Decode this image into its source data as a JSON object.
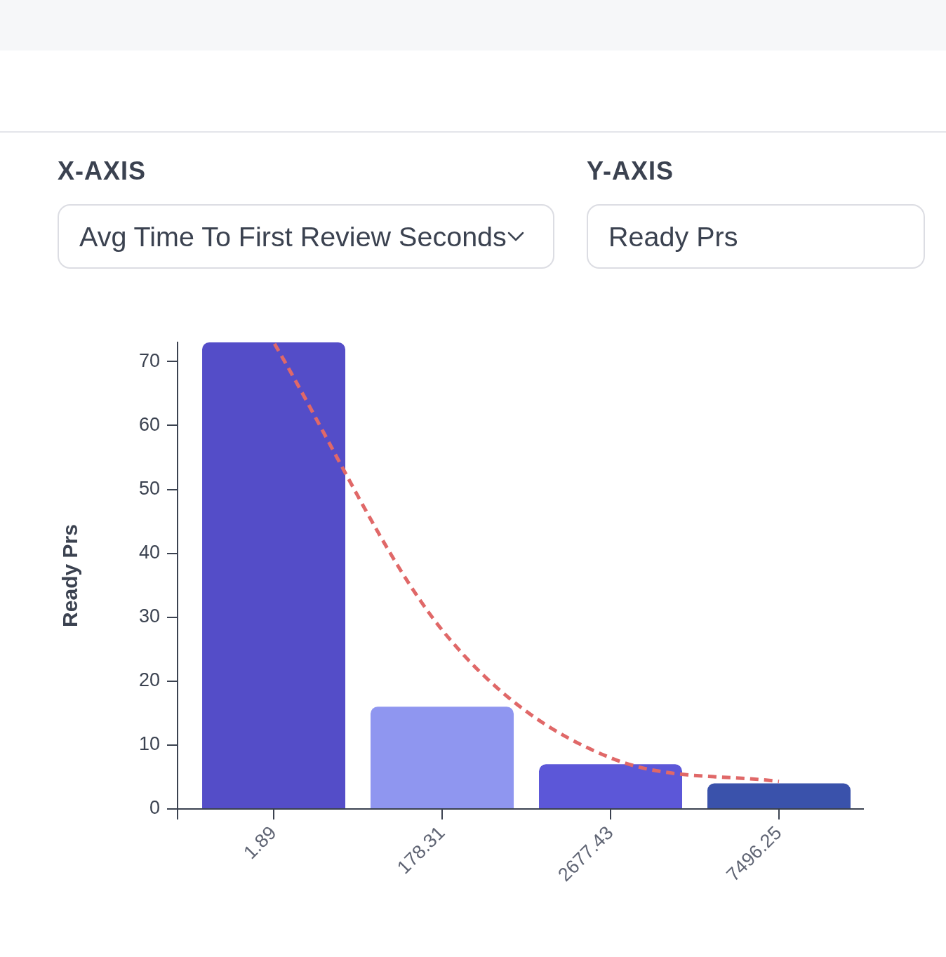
{
  "chart_data": {
    "type": "bar",
    "ylabel": "Ready Prs",
    "annotations": [
      "X-AXIS",
      "Avg Time To First Review Seconds",
      "Y-AXIS",
      "Ready Prs"
    ],
    "categories": [
      "1.89",
      "178.31",
      "2677.43",
      "7496.25"
    ],
    "series": [
      {
        "colors": [
          "#544dc8",
          "#8f96f0",
          "#5c57d8",
          "#3a52ab"
        ],
        "values": [
          73,
          16,
          7,
          4
        ]
      },
      {
        "type": "line",
        "color": "#e06868",
        "values": [
          73,
          28,
          8,
          4.3
        ],
        "line_style": "dashed",
        "marker": "none"
      }
    ],
    "ylim": [
      0,
      73
    ],
    "yticks": [
      0,
      10,
      20,
      30,
      40,
      50,
      60,
      70
    ],
    "grid": false,
    "legend": false
  }
}
